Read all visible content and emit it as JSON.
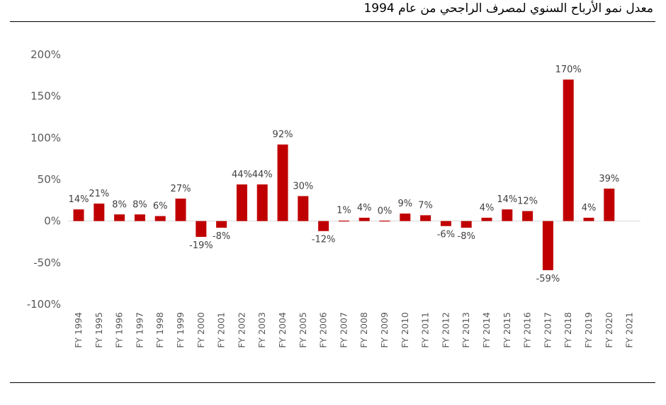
{
  "title": "معدل نمو الأرباح السنوي لمصرف الراجحي من عام 1994",
  "colors": {
    "bar": "#c00000",
    "axis": "#d9d9d9",
    "text": "#595959"
  },
  "chart_data": {
    "type": "bar",
    "title": "معدل نمو الأرباح السنوي لمصرف الراجحي من عام 1994",
    "xlabel": "",
    "ylabel": "",
    "ylim": [
      -100,
      200
    ],
    "yticks": [
      200,
      150,
      100,
      50,
      0,
      -50,
      -100
    ],
    "ytick_labels": [
      "200%",
      "150%",
      "100%",
      "50%",
      "0%",
      "-50%",
      "-100%"
    ],
    "grid": false,
    "categories": [
      "FY 1994",
      "FY 1995",
      "FY 1996",
      "FY 1997",
      "FY 1998",
      "FY 1999",
      "FY 2000",
      "FY 2001",
      "FY 2002",
      "FY 2003",
      "FY 2004",
      "FY 2005",
      "FY 2006",
      "FY 2007",
      "FY 2008",
      "FY 2009",
      "FY 2010",
      "FY 2011",
      "FY 2012",
      "FY 2013",
      "FY 2014",
      "FY 2015",
      "FY 2016",
      "FY 2017",
      "FY 2018",
      "FY 2019",
      "FY 2020",
      "FY 2021"
    ],
    "values": [
      14,
      21,
      8,
      8,
      6,
      27,
      -19,
      -8,
      44,
      44,
      92,
      30,
      -12,
      1,
      4,
      0,
      9,
      7,
      -6,
      -8,
      4,
      14,
      12,
      -59,
      170,
      4,
      39,
      null
    ],
    "data_labels": [
      "14%",
      "21%",
      "8%",
      "8%",
      "6%",
      "27%",
      "-19%",
      "-8%",
      "44%",
      "44%",
      "92%",
      "30%",
      "-12%",
      "1%",
      "4%",
      "0%",
      "9%",
      "7%",
      "-6%",
      "-8%",
      "4%",
      "14%",
      "12%",
      "-59%",
      "170%",
      "4%",
      "39%",
      ""
    ]
  }
}
